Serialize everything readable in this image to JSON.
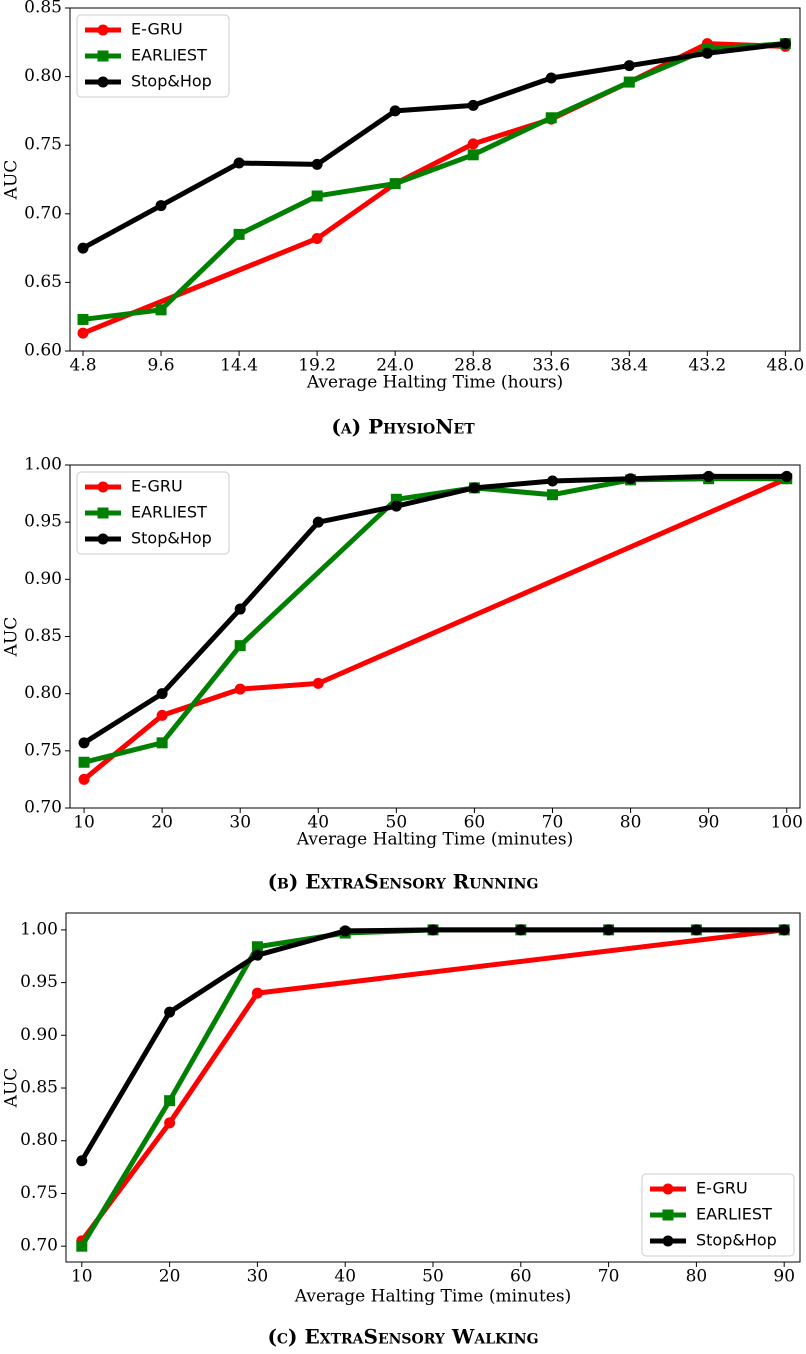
{
  "chart_data": [
    {
      "type": "line",
      "caption": "(a) PhysioNet",
      "xlabel": "Average Halting Time (hours)",
      "ylabel": "AUC",
      "xlim": [
        4.0,
        48.9
      ],
      "ylim": [
        0.6,
        0.85
      ],
      "xticks": [
        4.8,
        9.6,
        14.4,
        19.2,
        {
          "value": 24,
          "label": "24.0"
        },
        28.8,
        33.6,
        38.4,
        43.2,
        {
          "value": 48,
          "label": "48.0"
        }
      ],
      "yticks": [
        {
          "value": 0.6,
          "label": "0.60"
        },
        0.65,
        {
          "value": 0.7,
          "label": "0.70"
        },
        0.75,
        {
          "value": 0.8,
          "label": "0.80"
        },
        0.85
      ],
      "legend": "upper left",
      "series": [
        {
          "name": "E-GRU",
          "color": "#ff0000",
          "marker": "circle",
          "x": [
            4.8,
            19.2,
            24,
            28.8,
            33.6,
            38.4,
            43.2,
            48
          ],
          "values": [
            0.613,
            0.682,
            0.722,
            0.751,
            0.769,
            0.796,
            0.824,
            0.822
          ]
        },
        {
          "name": "EARLIEST",
          "color": "#008000",
          "marker": "square",
          "x": [
            4.8,
            9.6,
            14.4,
            19.2,
            24,
            28.8,
            33.6,
            38.4,
            43.2,
            48
          ],
          "values": [
            0.623,
            0.63,
            0.685,
            0.713,
            0.722,
            0.743,
            0.77,
            0.796,
            0.82,
            0.824
          ]
        },
        {
          "name": "Stop&Hop",
          "color": "#000000",
          "marker": "circle",
          "x": [
            4.8,
            9.6,
            14.4,
            19.2,
            24,
            28.8,
            33.6,
            38.4,
            43.2,
            48
          ],
          "values": [
            0.675,
            0.706,
            0.737,
            0.736,
            0.775,
            0.779,
            0.799,
            0.808,
            0.817,
            0.824
          ]
        }
      ]
    },
    {
      "type": "line",
      "caption": "(b) ExtraSensory Running",
      "xlabel": "Average Halting Time (minutes)",
      "ylabel": "AUC",
      "xlim": [
        8.2,
        101.7
      ],
      "ylim": [
        0.7,
        1.0
      ],
      "xticks": [
        10,
        20,
        30,
        40,
        50,
        60,
        70,
        80,
        90,
        100
      ],
      "yticks": [
        {
          "value": 0.7,
          "label": "0.70"
        },
        0.75,
        {
          "value": 0.8,
          "label": "0.80"
        },
        0.85,
        {
          "value": 0.9,
          "label": "0.90"
        },
        0.95,
        {
          "value": 1,
          "label": "1.00"
        }
      ],
      "legend": "upper left",
      "series": [
        {
          "name": "E-GRU",
          "color": "#ff0000",
          "marker": "circle",
          "x": [
            10,
            20,
            30,
            40,
            100
          ],
          "values": [
            0.725,
            0.781,
            0.804,
            0.809,
            0.988
          ]
        },
        {
          "name": "EARLIEST",
          "color": "#008000",
          "marker": "square",
          "x": [
            10,
            20,
            30,
            50,
            60,
            70,
            80,
            90,
            100
          ],
          "values": [
            0.74,
            0.757,
            0.842,
            0.97,
            0.98,
            0.974,
            0.987,
            0.988,
            0.988
          ]
        },
        {
          "name": "Stop&Hop",
          "color": "#000000",
          "marker": "circle",
          "x": [
            10,
            20,
            30,
            40,
            50,
            60,
            70,
            80,
            90,
            100
          ],
          "values": [
            0.757,
            0.8,
            0.874,
            0.95,
            0.964,
            0.98,
            0.986,
            0.988,
            0.99,
            0.99
          ]
        }
      ]
    },
    {
      "type": "line",
      "caption": "(c) ExtraSensory Walking",
      "xlabel": "Average Halting Time (minutes)",
      "ylabel": "AUC",
      "xlim": [
        8.2,
        91.8
      ],
      "ylim": [
        0.685,
        1.016
      ],
      "xticks": [
        10,
        20,
        30,
        40,
        50,
        60,
        70,
        80,
        90
      ],
      "yticks": [
        {
          "value": 0.7,
          "label": "0.70"
        },
        0.75,
        {
          "value": 0.8,
          "label": "0.80"
        },
        0.85,
        {
          "value": 0.9,
          "label": "0.90"
        },
        0.95,
        {
          "value": 1,
          "label": "1.00"
        }
      ],
      "legend": "lower right",
      "series": [
        {
          "name": "E-GRU",
          "color": "#ff0000",
          "marker": "circle",
          "x": [
            10,
            20,
            30,
            90
          ],
          "values": [
            0.705,
            0.817,
            0.94,
            1.0
          ]
        },
        {
          "name": "EARLIEST",
          "color": "#008000",
          "marker": "square",
          "x": [
            10,
            20,
            30,
            40,
            50,
            60,
            70,
            80,
            90
          ],
          "values": [
            0.7,
            0.838,
            0.984,
            0.997,
            1.0,
            1.0,
            1.0,
            1.0,
            1.0
          ]
        },
        {
          "name": "Stop&Hop",
          "color": "#000000",
          "marker": "circle",
          "x": [
            10,
            20,
            30,
            40,
            50,
            60,
            70,
            80,
            90
          ],
          "values": [
            0.781,
            0.922,
            0.976,
            0.999,
            1.0,
            1.0,
            1.0,
            1.0,
            1.0
          ]
        }
      ]
    }
  ]
}
